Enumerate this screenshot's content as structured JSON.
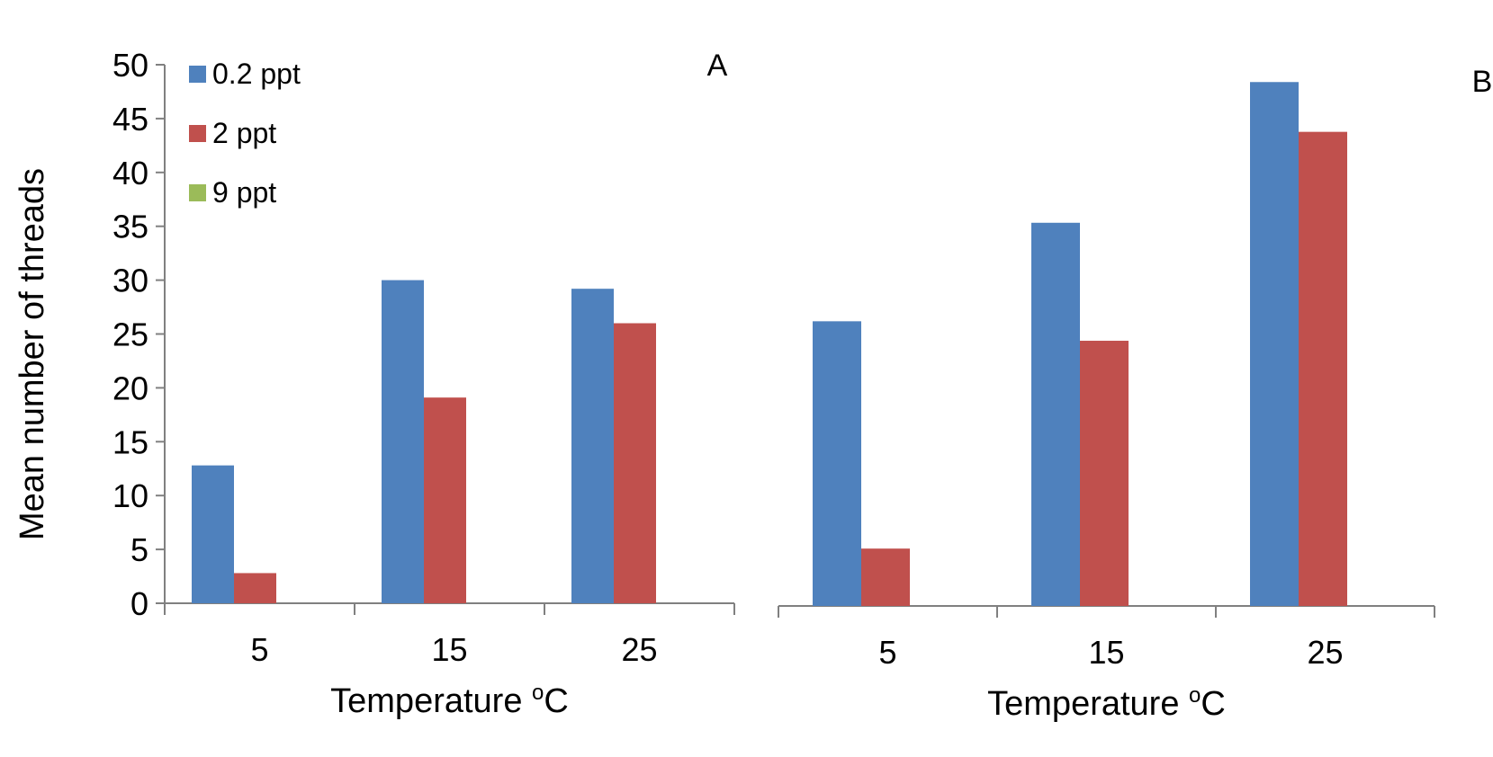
{
  "chart_data": [
    {
      "type": "bar",
      "panel_label": "A",
      "categories": [
        "5",
        "15",
        "25"
      ],
      "series": [
        {
          "name": "0.2 ppt",
          "values": [
            12.8,
            30.0,
            29.2
          ]
        },
        {
          "name": "2 ppt",
          "values": [
            2.8,
            19.1,
            26.0
          ]
        },
        {
          "name": "9 ppt",
          "values": [
            0,
            0,
            0
          ]
        }
      ],
      "xlabel": "Temperature",
      "xlabel_unit": "C",
      "xlabel_unit_superscript": "o",
      "ylabel": "Mean number of threads",
      "ylim": [
        0,
        50
      ],
      "yticks": [
        "0",
        "5",
        "10",
        "15",
        "20",
        "25",
        "30",
        "35",
        "40",
        "45",
        "50"
      ],
      "legend": "top-left",
      "grid": false
    },
    {
      "type": "bar",
      "panel_label": "B",
      "categories": [
        "5",
        "15",
        "25"
      ],
      "series": [
        {
          "name": "0.2 ppt",
          "values": [
            26.3,
            35.4,
            48.4
          ]
        },
        {
          "name": "2 ppt",
          "values": [
            5.3,
            24.5,
            43.8
          ]
        },
        {
          "name": "9 ppt",
          "values": [
            0,
            0,
            0
          ]
        }
      ],
      "xlabel": "Temperature",
      "xlabel_unit": "C",
      "xlabel_unit_superscript": "o",
      "ylim": [
        0,
        50
      ],
      "grid": false
    }
  ],
  "colors": {
    "series": [
      "#4f81bd",
      "#c0504d",
      "#9bbb59"
    ],
    "axis": "#808080",
    "text": "#000000"
  }
}
